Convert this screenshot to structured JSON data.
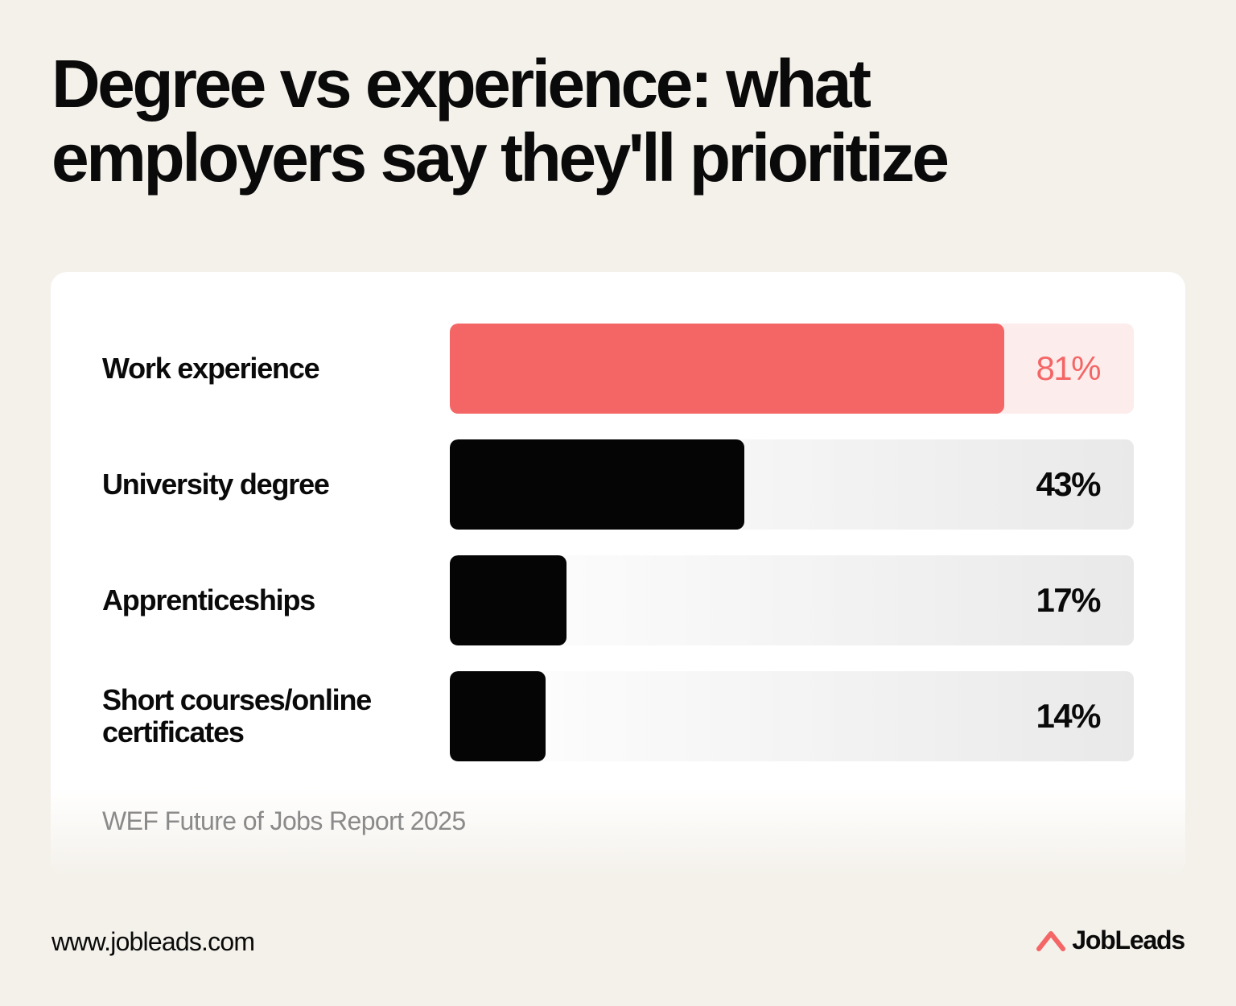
{
  "title": "Degree vs experience: what employers say they'll prioritize",
  "chart_data": {
    "type": "bar",
    "orientation": "horizontal",
    "categories": [
      "Work experience",
      "University degree",
      "Apprenticeships",
      "Short courses/online certificates"
    ],
    "values": [
      81,
      43,
      17,
      14
    ],
    "value_labels": [
      "81%",
      "43%",
      "17%",
      "14%"
    ],
    "unit": "%",
    "xlim": [
      0,
      100
    ],
    "highlight_index": 0,
    "colors": {
      "highlight": "#f46666",
      "highlight_track": "#fdecec",
      "default": "#050505"
    }
  },
  "source": "WEF Future of Jobs Report 2025",
  "footer": {
    "url": "www.jobleads.com",
    "brand": "JobLeads",
    "brand_icon": "jobleads-logo-icon"
  }
}
